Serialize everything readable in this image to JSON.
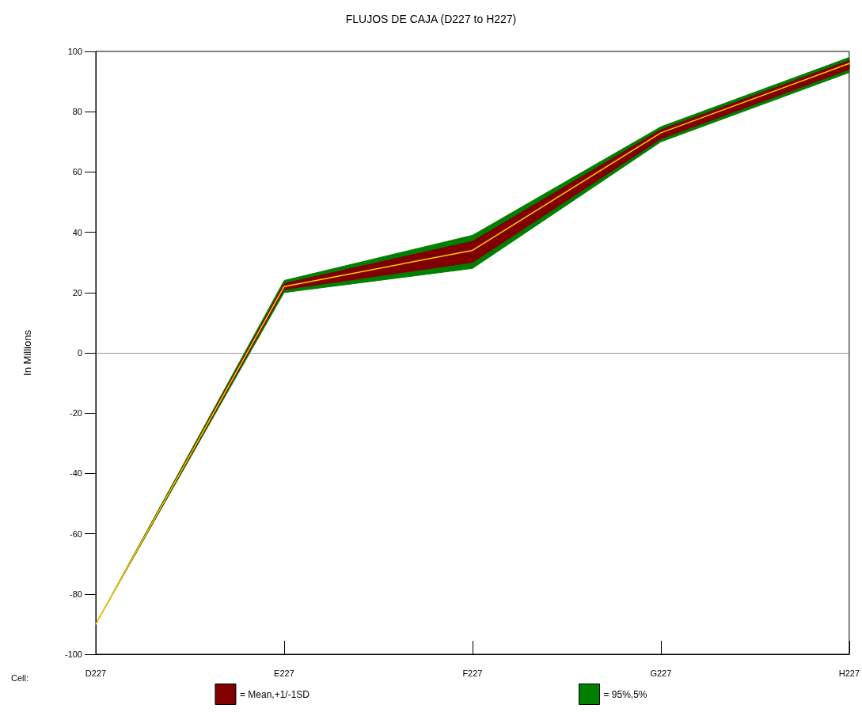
{
  "chart_data": {
    "type": "area",
    "title": "FLUJOS DE CAJA (D227 to H227)",
    "xlabel": "Cell:",
    "ylabel": "In Millions",
    "categories": [
      "D227",
      "E227",
      "F227",
      "G227",
      "H227"
    ],
    "series": [
      {
        "name": "= 95%,5%",
        "color": "#008000",
        "values": [
          null,
          null,
          null,
          null,
          null
        ],
        "lower": [
          -90,
          20,
          28,
          70,
          93
        ],
        "upper": [
          -90,
          24,
          39,
          75,
          98
        ]
      },
      {
        "name": "= Mean,+1/-1SD",
        "color": "#800000",
        "values": [
          null,
          null,
          null,
          null,
          null
        ],
        "lower": [
          -90,
          21,
          30,
          71,
          94
        ],
        "upper": [
          -90,
          23,
          37,
          74,
          97
        ]
      },
      {
        "type": "line",
        "color": "#ffcc00",
        "values": [
          -90,
          22,
          34,
          73,
          96
        ]
      }
    ],
    "ylim": [
      -100,
      100
    ],
    "yticks": [
      -100,
      -80,
      -60,
      -40,
      -20,
      0,
      20,
      40,
      60,
      80,
      100
    ],
    "ref_lines": [
      {
        "axis": "y",
        "value": 0,
        "color": "#808080"
      }
    ],
    "grid": false,
    "legend": "bottom",
    "marker": "none"
  }
}
